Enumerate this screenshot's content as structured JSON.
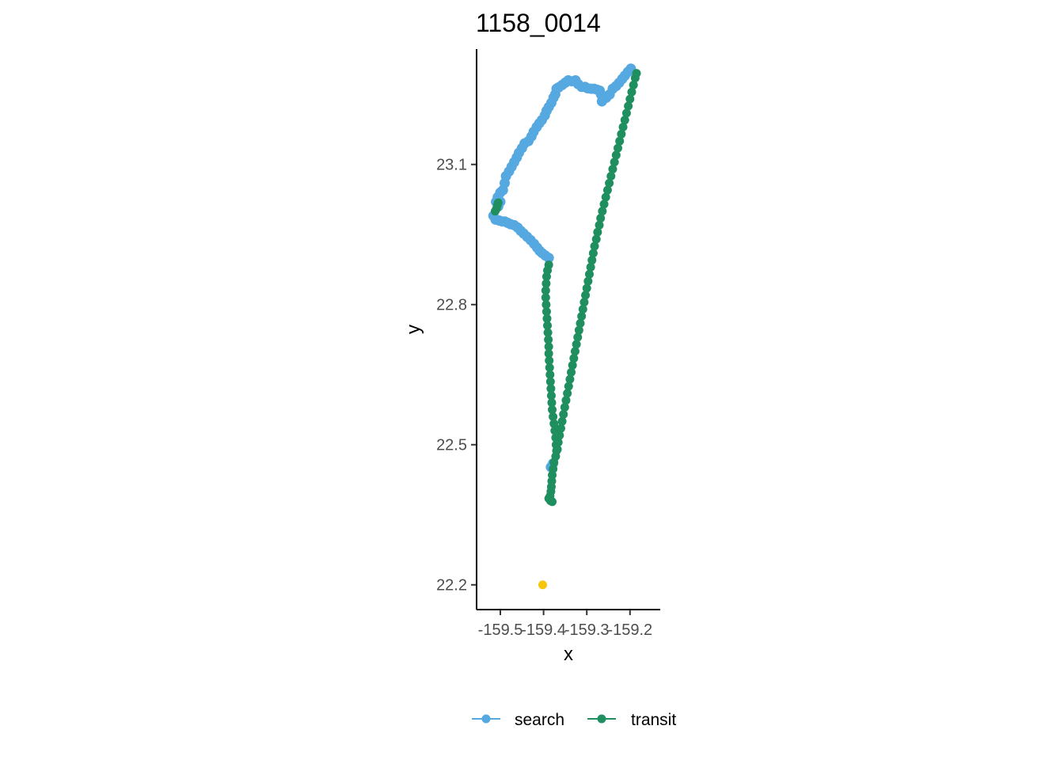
{
  "chart_data": {
    "type": "scatter",
    "title": "1158_0014",
    "xlabel": "x",
    "ylabel": "y",
    "xlim": [
      -159.555,
      -159.13
    ],
    "ylim": [
      22.147,
      23.347
    ],
    "x_ticks": [
      -159.5,
      -159.4,
      -159.3,
      -159.2
    ],
    "x_tick_labels": [
      "-159.5",
      "-159.4",
      "-159.3",
      "-159.2"
    ],
    "y_ticks": [
      22.2,
      22.5,
      22.8,
      23.1
    ],
    "y_tick_labels": [
      "22.2",
      "22.5",
      "22.8",
      "23.1"
    ],
    "grid": false,
    "legend_position": "bottom",
    "series": [
      {
        "name": "search",
        "color": "#56a8e0",
        "points": [
          [
            -159.51,
            23.02
          ],
          [
            -159.506,
            23.03
          ],
          [
            -159.5,
            23.04
          ],
          [
            -159.494,
            23.045
          ],
          [
            -159.49,
            23.06
          ],
          [
            -159.487,
            23.075
          ],
          [
            -159.48,
            23.085
          ],
          [
            -159.474,
            23.095
          ],
          [
            -159.468,
            23.105
          ],
          [
            -159.462,
            23.115
          ],
          [
            -159.457,
            23.125
          ],
          [
            -159.45,
            23.135
          ],
          [
            -159.444,
            23.145
          ],
          [
            -159.435,
            23.15
          ],
          [
            -159.428,
            23.16
          ],
          [
            -159.423,
            23.17
          ],
          [
            -159.416,
            23.18
          ],
          [
            -159.41,
            23.188
          ],
          [
            -159.404,
            23.195
          ],
          [
            -159.397,
            23.205
          ],
          [
            -159.393,
            23.215
          ],
          [
            -159.388,
            23.223
          ],
          [
            -159.382,
            23.232
          ],
          [
            -159.377,
            23.243
          ],
          [
            -159.373,
            23.25
          ],
          [
            -159.37,
            23.262
          ],
          [
            -159.365,
            23.265
          ],
          [
            -159.357,
            23.27
          ],
          [
            -159.35,
            23.275
          ],
          [
            -159.343,
            23.28
          ],
          [
            -159.335,
            23.278
          ],
          [
            -159.326,
            23.28
          ],
          [
            -159.32,
            23.272
          ],
          [
            -159.312,
            23.266
          ],
          [
            -159.304,
            23.266
          ],
          [
            -159.298,
            23.263
          ],
          [
            -159.29,
            23.262
          ],
          [
            -159.283,
            23.262
          ],
          [
            -159.276,
            23.26
          ],
          [
            -159.27,
            23.258
          ],
          [
            -159.267,
            23.25
          ],
          [
            -159.265,
            23.235
          ],
          [
            -159.262,
            23.24
          ],
          [
            -159.255,
            23.243
          ],
          [
            -159.247,
            23.25
          ],
          [
            -159.24,
            23.262
          ],
          [
            -159.232,
            23.268
          ],
          [
            -159.225,
            23.275
          ],
          [
            -159.218,
            23.283
          ],
          [
            -159.212,
            23.29
          ],
          [
            -159.205,
            23.298
          ],
          [
            -159.198,
            23.305
          ],
          [
            -159.5,
            23.02
          ],
          [
            -159.505,
            23.01
          ],
          [
            -159.516,
            22.99
          ],
          [
            -159.511,
            22.982
          ],
          [
            -159.503,
            22.98
          ],
          [
            -159.496,
            22.978
          ],
          [
            -159.49,
            22.978
          ],
          [
            -159.483,
            22.975
          ],
          [
            -159.476,
            22.972
          ],
          [
            -159.468,
            22.97
          ],
          [
            -159.46,
            22.965
          ],
          [
            -159.453,
            22.958
          ],
          [
            -159.446,
            22.952
          ],
          [
            -159.438,
            22.945
          ],
          [
            -159.43,
            22.938
          ],
          [
            -159.422,
            22.93
          ],
          [
            -159.415,
            22.922
          ],
          [
            -159.409,
            22.915
          ],
          [
            -159.403,
            22.91
          ],
          [
            -159.396,
            22.905
          ],
          [
            -159.388,
            22.9
          ],
          [
            -159.378,
            22.46
          ],
          [
            -159.383,
            22.452
          ]
        ]
      },
      {
        "name": "transit",
        "color": "#1f8f5f",
        "points": [
          [
            -159.512,
            23.0
          ],
          [
            -159.509,
            23.005
          ],
          [
            -159.507,
            23.012
          ],
          [
            -159.505,
            23.018
          ],
          [
            -159.388,
            22.885
          ],
          [
            -159.391,
            22.873
          ],
          [
            -159.393,
            22.86
          ],
          [
            -159.394,
            22.845
          ],
          [
            -159.395,
            22.83
          ],
          [
            -159.395,
            22.815
          ],
          [
            -159.394,
            22.8
          ],
          [
            -159.393,
            22.785
          ],
          [
            -159.392,
            22.77
          ],
          [
            -159.391,
            22.755
          ],
          [
            -159.39,
            22.74
          ],
          [
            -159.389,
            22.725
          ],
          [
            -159.388,
            22.71
          ],
          [
            -159.388,
            22.695
          ],
          [
            -159.387,
            22.68
          ],
          [
            -159.386,
            22.665
          ],
          [
            -159.385,
            22.65
          ],
          [
            -159.384,
            22.635
          ],
          [
            -159.383,
            22.62
          ],
          [
            -159.382,
            22.605
          ],
          [
            -159.381,
            22.59
          ],
          [
            -159.38,
            22.575
          ],
          [
            -159.378,
            22.56
          ],
          [
            -159.376,
            22.545
          ],
          [
            -159.374,
            22.53
          ],
          [
            -159.372,
            22.515
          ],
          [
            -159.371,
            22.5
          ],
          [
            -159.37,
            22.487
          ],
          [
            -159.372,
            22.475
          ],
          [
            -159.376,
            22.462
          ],
          [
            -159.378,
            22.448
          ],
          [
            -159.38,
            22.435
          ],
          [
            -159.381,
            22.422
          ],
          [
            -159.382,
            22.41
          ],
          [
            -159.383,
            22.4
          ],
          [
            -159.385,
            22.39
          ],
          [
            -159.388,
            22.385
          ],
          [
            -159.384,
            22.38
          ],
          [
            -159.38,
            22.378
          ],
          [
            -159.368,
            22.49
          ],
          [
            -159.366,
            22.505
          ],
          [
            -159.363,
            22.52
          ],
          [
            -159.36,
            22.535
          ],
          [
            -159.357,
            22.55
          ],
          [
            -159.354,
            22.565
          ],
          [
            -159.351,
            22.58
          ],
          [
            -159.348,
            22.595
          ],
          [
            -159.345,
            22.61
          ],
          [
            -159.342,
            22.625
          ],
          [
            -159.339,
            22.64
          ],
          [
            -159.336,
            22.655
          ],
          [
            -159.333,
            22.67
          ],
          [
            -159.33,
            22.685
          ],
          [
            -159.327,
            22.7
          ],
          [
            -159.324,
            22.715
          ],
          [
            -159.321,
            22.73
          ],
          [
            -159.318,
            22.745
          ],
          [
            -159.315,
            22.76
          ],
          [
            -159.312,
            22.775
          ],
          [
            -159.309,
            22.79
          ],
          [
            -159.306,
            22.805
          ],
          [
            -159.303,
            22.82
          ],
          [
            -159.3,
            22.835
          ],
          [
            -159.297,
            22.85
          ],
          [
            -159.294,
            22.865
          ],
          [
            -159.291,
            22.88
          ],
          [
            -159.288,
            22.895
          ],
          [
            -159.285,
            22.91
          ],
          [
            -159.282,
            22.925
          ],
          [
            -159.278,
            22.94
          ],
          [
            -159.275,
            22.955
          ],
          [
            -159.271,
            22.97
          ],
          [
            -159.268,
            22.985
          ],
          [
            -159.264,
            23.0
          ],
          [
            -159.26,
            23.015
          ],
          [
            -159.256,
            23.03
          ],
          [
            -159.252,
            23.045
          ],
          [
            -159.248,
            23.06
          ],
          [
            -159.244,
            23.075
          ],
          [
            -159.24,
            23.09
          ],
          [
            -159.236,
            23.105
          ],
          [
            -159.232,
            23.12
          ],
          [
            -159.228,
            23.135
          ],
          [
            -159.224,
            23.15
          ],
          [
            -159.22,
            23.165
          ],
          [
            -159.216,
            23.18
          ],
          [
            -159.212,
            23.195
          ],
          [
            -159.208,
            23.21
          ],
          [
            -159.204,
            23.225
          ],
          [
            -159.2,
            23.24
          ],
          [
            -159.196,
            23.255
          ],
          [
            -159.192,
            23.27
          ],
          [
            -159.188,
            23.285
          ],
          [
            -159.185,
            23.295
          ]
        ]
      },
      {
        "color": "#f5c60a",
        "points": [
          [
            -159.402,
            22.2
          ]
        ]
      }
    ]
  }
}
